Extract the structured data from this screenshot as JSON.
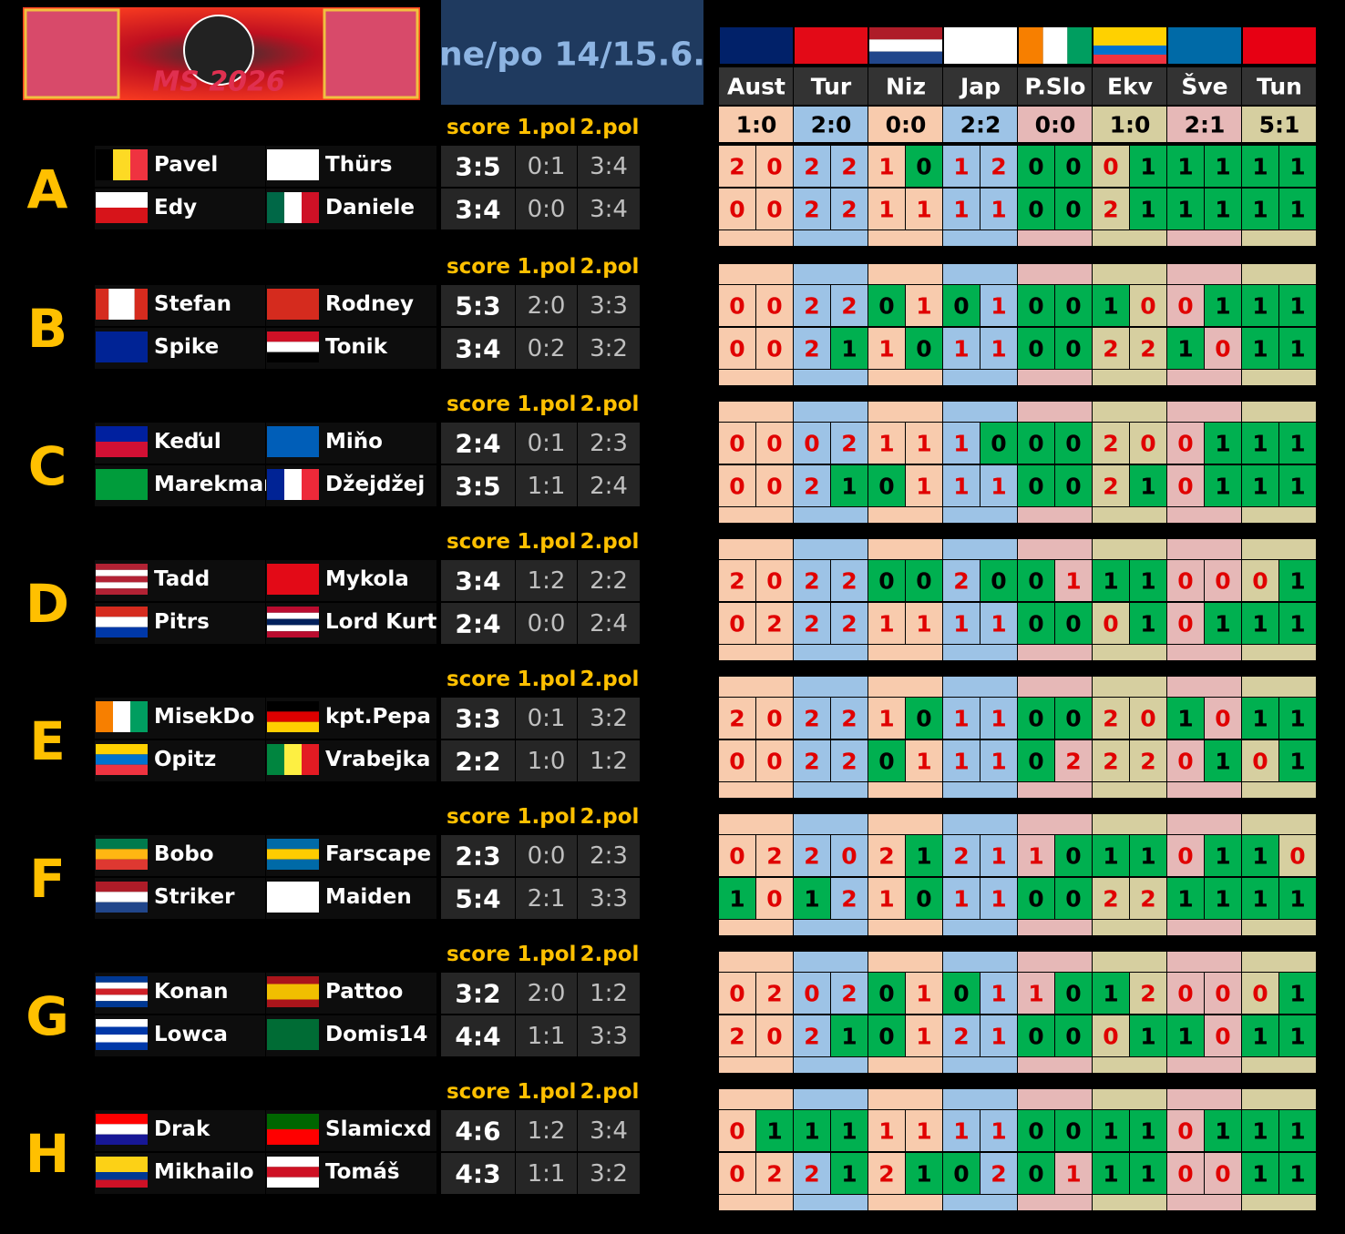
{
  "header": {
    "title": "ne/po 14/15.6.",
    "logo": "MS 2026"
  },
  "columns": [
    "score",
    "1.pol",
    "2.pol"
  ],
  "teams": [
    "Aust",
    "Tur",
    "Niz",
    "Jap",
    "P.Slo",
    "Ekv",
    "Šve",
    "Tun"
  ],
  "results": [
    "1:0",
    "2:0",
    "0:0",
    "2:2",
    "0:0",
    "1:0",
    "2:1",
    "5:1"
  ],
  "groups": [
    {
      "letter": "A",
      "players": [
        [
          "Pavel",
          "Thürs"
        ],
        [
          "Edy",
          "Daniele"
        ]
      ],
      "scores": [
        [
          "3:5",
          "0:1",
          "3:4"
        ],
        [
          "3:4",
          "0:0",
          "3:4"
        ]
      ],
      "picks": [
        [
          2,
          0,
          2,
          2,
          1,
          0,
          1,
          2,
          0,
          0,
          0,
          1,
          1,
          1,
          1,
          1
        ],
        [
          0,
          0,
          2,
          2,
          1,
          1,
          1,
          1,
          0,
          0,
          2,
          1,
          1,
          1,
          1,
          1
        ]
      ],
      "hits": [
        [
          false,
          false,
          false,
          false,
          false,
          true,
          false,
          false,
          true,
          true,
          false,
          true,
          true,
          true,
          true,
          true
        ],
        [
          false,
          false,
          false,
          false,
          false,
          false,
          false,
          false,
          true,
          true,
          false,
          true,
          true,
          true,
          true,
          true
        ]
      ]
    },
    {
      "letter": "B",
      "players": [
        [
          "Stefan",
          "Rodney"
        ],
        [
          "Spike",
          "Tonik"
        ]
      ],
      "scores": [
        [
          "5:3",
          "2:0",
          "3:3"
        ],
        [
          "3:4",
          "0:2",
          "3:2"
        ]
      ],
      "picks": [
        [
          0,
          0,
          2,
          2,
          0,
          1,
          0,
          1,
          0,
          0,
          1,
          0,
          0,
          1,
          1,
          1
        ],
        [
          0,
          0,
          2,
          1,
          1,
          0,
          1,
          1,
          0,
          0,
          2,
          2,
          1,
          0,
          1,
          1
        ]
      ],
      "hits": [
        [
          false,
          false,
          false,
          false,
          true,
          false,
          true,
          false,
          true,
          true,
          true,
          false,
          false,
          true,
          true,
          true
        ],
        [
          false,
          false,
          false,
          true,
          false,
          true,
          false,
          false,
          true,
          true,
          false,
          false,
          true,
          false,
          true,
          true
        ]
      ]
    },
    {
      "letter": "C",
      "players": [
        [
          "Keďul",
          "Miňo"
        ],
        [
          "Marekman",
          "Džejdžej"
        ]
      ],
      "scores": [
        [
          "2:4",
          "0:1",
          "2:3"
        ],
        [
          "3:5",
          "1:1",
          "2:4"
        ]
      ],
      "picks": [
        [
          0,
          0,
          0,
          2,
          1,
          1,
          1,
          0,
          0,
          0,
          2,
          0,
          0,
          1,
          1,
          1
        ],
        [
          0,
          0,
          2,
          1,
          0,
          1,
          1,
          1,
          0,
          0,
          2,
          1,
          0,
          1,
          1,
          1
        ]
      ],
      "hits": [
        [
          false,
          false,
          false,
          false,
          false,
          false,
          false,
          true,
          true,
          true,
          false,
          false,
          false,
          true,
          true,
          true
        ],
        [
          false,
          false,
          false,
          true,
          true,
          false,
          false,
          false,
          true,
          true,
          false,
          true,
          false,
          true,
          true,
          true
        ]
      ]
    },
    {
      "letter": "D",
      "players": [
        [
          "Tadd",
          "Mykola"
        ],
        [
          "Pitrs",
          "Lord Kurt"
        ]
      ],
      "scores": [
        [
          "3:4",
          "1:2",
          "2:2"
        ],
        [
          "2:4",
          "0:0",
          "2:4"
        ]
      ],
      "picks": [
        [
          2,
          0,
          2,
          2,
          0,
          0,
          2,
          0,
          0,
          1,
          1,
          1,
          0,
          0,
          0,
          1
        ],
        [
          0,
          2,
          2,
          2,
          1,
          1,
          1,
          1,
          0,
          0,
          0,
          1,
          0,
          1,
          1,
          1
        ]
      ],
      "hits": [
        [
          false,
          false,
          false,
          false,
          true,
          true,
          false,
          true,
          true,
          false,
          true,
          true,
          false,
          false,
          false,
          true
        ],
        [
          false,
          false,
          false,
          false,
          false,
          false,
          false,
          false,
          true,
          true,
          false,
          true,
          false,
          true,
          true,
          true
        ]
      ]
    },
    {
      "letter": "E",
      "players": [
        [
          "MisekDo",
          "kpt.Pepa"
        ],
        [
          "Opitz",
          "Vrabejka"
        ]
      ],
      "scores": [
        [
          "3:3",
          "0:1",
          "3:2"
        ],
        [
          "2:2",
          "1:0",
          "1:2"
        ]
      ],
      "picks": [
        [
          2,
          0,
          2,
          2,
          1,
          0,
          1,
          1,
          0,
          0,
          2,
          0,
          1,
          0,
          1,
          1
        ],
        [
          0,
          0,
          2,
          2,
          0,
          1,
          1,
          1,
          0,
          2,
          2,
          2,
          0,
          1,
          0,
          1
        ]
      ],
      "hits": [
        [
          false,
          false,
          false,
          false,
          false,
          true,
          false,
          false,
          true,
          true,
          false,
          false,
          true,
          false,
          true,
          true
        ],
        [
          false,
          false,
          false,
          false,
          true,
          false,
          false,
          false,
          true,
          false,
          false,
          false,
          false,
          true,
          false,
          true
        ]
      ]
    },
    {
      "letter": "F",
      "players": [
        [
          "Bobo",
          "Farscape"
        ],
        [
          "Striker",
          "Maiden"
        ]
      ],
      "scores": [
        [
          "2:3",
          "0:0",
          "2:3"
        ],
        [
          "5:4",
          "2:1",
          "3:3"
        ]
      ],
      "picks": [
        [
          0,
          2,
          2,
          0,
          2,
          1,
          2,
          1,
          1,
          0,
          1,
          1,
          0,
          1,
          1,
          0
        ],
        [
          1,
          0,
          1,
          2,
          1,
          0,
          1,
          1,
          0,
          0,
          2,
          2,
          1,
          1,
          1,
          1
        ]
      ],
      "hits": [
        [
          false,
          false,
          false,
          false,
          false,
          true,
          false,
          false,
          false,
          true,
          true,
          true,
          false,
          true,
          true,
          false
        ],
        [
          true,
          false,
          true,
          false,
          false,
          true,
          false,
          false,
          true,
          true,
          false,
          false,
          true,
          true,
          true,
          true
        ]
      ]
    },
    {
      "letter": "G",
      "players": [
        [
          "Konan",
          "Pattoo"
        ],
        [
          "Lowca",
          "Domis14"
        ]
      ],
      "scores": [
        [
          "3:2",
          "2:0",
          "1:2"
        ],
        [
          "4:4",
          "1:1",
          "3:3"
        ]
      ],
      "picks": [
        [
          0,
          2,
          0,
          2,
          0,
          1,
          0,
          1,
          1,
          0,
          1,
          2,
          0,
          0,
          0,
          1
        ],
        [
          2,
          0,
          2,
          1,
          0,
          1,
          2,
          1,
          0,
          0,
          0,
          1,
          1,
          0,
          1,
          1
        ]
      ],
      "hits": [
        [
          false,
          false,
          false,
          false,
          true,
          false,
          true,
          false,
          false,
          true,
          true,
          false,
          false,
          false,
          false,
          true
        ],
        [
          false,
          false,
          false,
          true,
          true,
          false,
          false,
          false,
          true,
          true,
          false,
          true,
          true,
          false,
          true,
          true
        ]
      ]
    },
    {
      "letter": "H",
      "players": [
        [
          "Drak",
          "Slamicxd"
        ],
        [
          "Mikhailo",
          "Tomáš"
        ]
      ],
      "scores": [
        [
          "4:6",
          "1:2",
          "3:4"
        ],
        [
          "4:3",
          "1:1",
          "3:2"
        ]
      ],
      "picks": [
        [
          0,
          1,
          1,
          1,
          1,
          1,
          1,
          1,
          0,
          0,
          1,
          1,
          0,
          1,
          1,
          1
        ],
        [
          0,
          2,
          2,
          1,
          2,
          1,
          0,
          2,
          0,
          1,
          1,
          1,
          0,
          0,
          1,
          1
        ]
      ],
      "hits": [
        [
          false,
          true,
          true,
          true,
          false,
          false,
          false,
          false,
          true,
          true,
          true,
          true,
          false,
          true,
          true,
          true
        ],
        [
          false,
          false,
          false,
          true,
          false,
          true,
          true,
          false,
          true,
          false,
          true,
          true,
          false,
          false,
          true,
          true
        ]
      ]
    }
  ]
}
